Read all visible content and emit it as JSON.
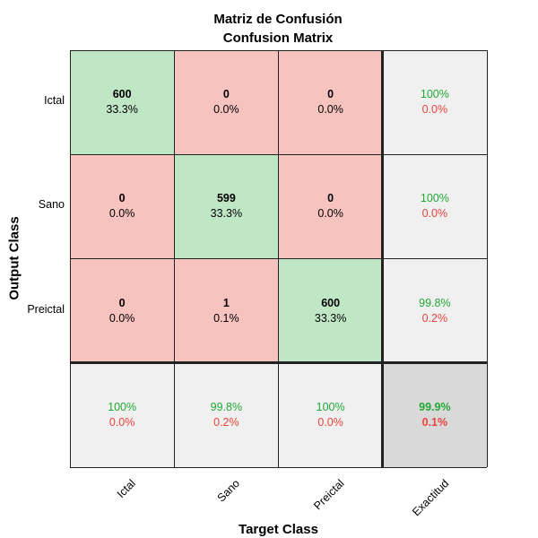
{
  "chart_data": {
    "type": "heatmap",
    "title": "Matriz de Confusión",
    "subtitle": "Confusion Matrix",
    "xlabel": "Target Class",
    "ylabel": "Output Class",
    "row_labels": [
      "Ictal",
      "Sano",
      "Preictal"
    ],
    "col_labels": [
      "Ictal",
      "Sano",
      "Preictal",
      "Exactitud"
    ],
    "matrix": [
      [
        {
          "count": "600",
          "pct": "33.3%"
        },
        {
          "count": "0",
          "pct": "0.0%"
        },
        {
          "count": "0",
          "pct": "0.0%"
        }
      ],
      [
        {
          "count": "0",
          "pct": "0.0%"
        },
        {
          "count": "599",
          "pct": "33.3%"
        },
        {
          "count": "0",
          "pct": "0.0%"
        }
      ],
      [
        {
          "count": "0",
          "pct": "0.0%"
        },
        {
          "count": "1",
          "pct": "0.1%"
        },
        {
          "count": "600",
          "pct": "33.3%"
        }
      ]
    ],
    "row_summary": [
      {
        "correct": "100%",
        "wrong": "0.0%"
      },
      {
        "correct": "100%",
        "wrong": "0.0%"
      },
      {
        "correct": "99.8%",
        "wrong": "0.2%"
      }
    ],
    "col_summary": [
      {
        "correct": "100%",
        "wrong": "0.0%"
      },
      {
        "correct": "99.8%",
        "wrong": "0.2%"
      },
      {
        "correct": "100%",
        "wrong": "0.0%"
      }
    ],
    "overall": {
      "correct": "99.9%",
      "wrong": "0.1%"
    }
  },
  "colors": {
    "correct_fill": "#bfe6c5",
    "incorrect_fill": "#f7c3bf",
    "summary_fill": "#f0f0f0",
    "overall_fill": "#d9d9d9",
    "correct_text": "#22a833",
    "incorrect_text": "#e8453c"
  }
}
